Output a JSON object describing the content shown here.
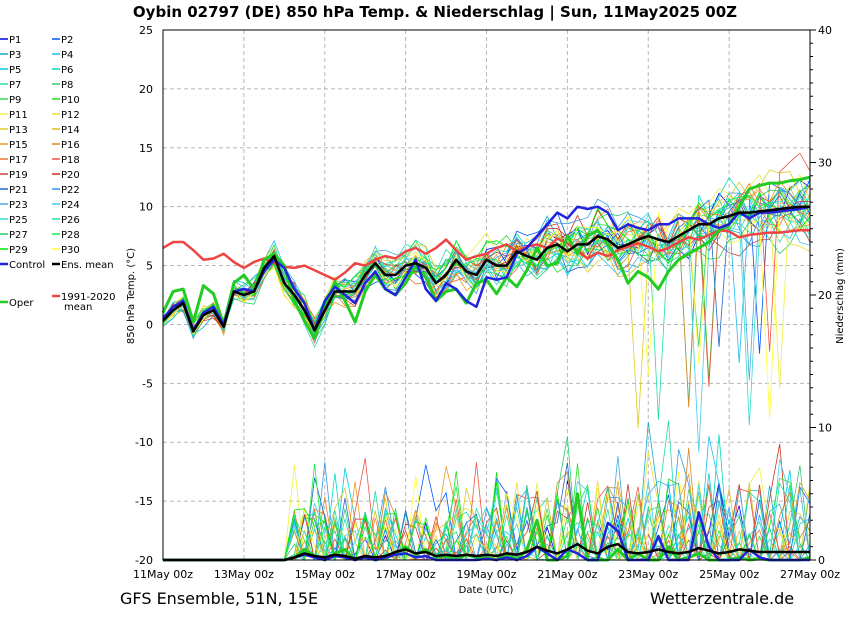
{
  "chart_data": {
    "type": "line",
    "title": "Oybin 02797 (DE)  850 hPa Temp. & Niederschlag | Sun, 11May2025 00Z",
    "xlabel": "Date (UTC)",
    "ylabel": "850 hPa Temp. (°C)",
    "y2label": "Niederschlag (mm)",
    "ylim": [
      -20,
      25
    ],
    "y2lim": [
      0,
      40
    ],
    "yticks": [
      "25",
      "20",
      "15",
      "10",
      "5",
      "0",
      "-5",
      "-10",
      "-15",
      "-20"
    ],
    "y2ticks": [
      "40",
      "30",
      "20",
      "10",
      "0"
    ],
    "x_hours": [
      0,
      6,
      12,
      18,
      24,
      30,
      36,
      42,
      48,
      54,
      60,
      66,
      72,
      78,
      84,
      90,
      96,
      102,
      108,
      114,
      120,
      126,
      132,
      138,
      144,
      150,
      156,
      162,
      168,
      174,
      180,
      186,
      192,
      198,
      204,
      210,
      216,
      222,
      228,
      234,
      240,
      246,
      252,
      258,
      264,
      270,
      276,
      282,
      288,
      294,
      300,
      306,
      312,
      318,
      324,
      330,
      336,
      342,
      348,
      354,
      360,
      366,
      372,
      378,
      384
    ],
    "xticks": [
      "11May 00z",
      "13May 00z",
      "15May 00z",
      "17May 00z",
      "19May 00z",
      "21May 00z",
      "23May 00z",
      "25May 00z",
      "27May 00z"
    ],
    "grid": true,
    "series": [
      {
        "name": "Oper",
        "color": "#22cc22",
        "width": 3,
        "temp": [
          1,
          2.8,
          3.0,
          0.2,
          3.3,
          2.6,
          0.0,
          3.5,
          4.2,
          3.0,
          5.5,
          6.0,
          5.0,
          2.0,
          0.3,
          -1.2,
          1.5,
          3.6,
          2.0,
          0.2,
          2.8,
          4.2,
          3.0,
          2.5,
          3.5,
          5.0,
          4.0,
          2.0,
          2.8,
          3.0,
          1.8,
          3.5,
          3.8,
          2.6,
          4.0,
          3.2,
          4.6,
          6.5,
          5.0,
          5.2,
          7.5,
          6.0,
          7.5,
          8.0,
          6.8,
          5.5,
          3.5,
          4.5,
          4.0,
          3.0,
          4.5,
          5.5,
          6.0,
          6.5,
          7.0,
          8.0,
          8.5,
          10.0,
          11.5,
          11.8,
          12.0,
          12.0,
          12.2,
          12.3,
          12.5
        ],
        "precip": [
          0,
          0,
          0,
          0,
          0,
          0,
          0,
          0,
          0,
          0,
          0,
          0,
          0,
          0.2,
          0.8,
          0.3,
          0,
          0.5,
          0.8,
          0,
          0.3,
          0,
          0.2,
          0.5,
          1.0,
          0.4,
          0.8,
          0.2,
          0.3,
          0,
          0.4,
          0.2,
          0.2,
          0,
          0.5,
          0,
          0.8,
          3.0,
          0,
          0,
          0.3,
          5.0,
          0,
          0,
          0,
          0.8,
          0,
          0.5,
          0,
          0,
          1.0,
          0,
          0.2,
          0.5,
          0,
          0,
          0,
          0.2,
          0,
          0.1,
          0,
          0,
          0,
          0,
          0.2
        ]
      },
      {
        "name": "Control",
        "color": "#2222dd",
        "width": 2.5,
        "temp": [
          0.5,
          1.5,
          2.0,
          -0.5,
          1.0,
          1.5,
          0,
          2.8,
          3.0,
          2.8,
          4.5,
          5.5,
          4.8,
          3.0,
          1.8,
          -0.5,
          2.0,
          3.2,
          2.5,
          1.8,
          3.5,
          4.5,
          3.0,
          2.5,
          4.0,
          5.5,
          3.0,
          2.0,
          3.5,
          3.0,
          2.0,
          1.5,
          4.0,
          3.8,
          4.0,
          6.0,
          6.5,
          7.5,
          8.5,
          9.5,
          9.0,
          10.0,
          9.8,
          10.0,
          9.5,
          8.0,
          8.5,
          8.2,
          8.0,
          8.5,
          8.5,
          9.0,
          9.0,
          9.0,
          8.5,
          8.2,
          8.5,
          9.5,
          9.0,
          9.5,
          9.5,
          9.6,
          9.7,
          9.8,
          10.0
        ],
        "precip": [
          0,
          0,
          0,
          0,
          0,
          0,
          0,
          0,
          0,
          0,
          0,
          0,
          0,
          0.2,
          0.4,
          0.2,
          0,
          0.3,
          0.2,
          0,
          0.2,
          0,
          0.2,
          0.4,
          0.5,
          0.2,
          0.3,
          0,
          0,
          0,
          0,
          0,
          0.1,
          0,
          0.2,
          0,
          0.3,
          1.0,
          0.5,
          0,
          0.8,
          0.5,
          0,
          0,
          2.8,
          2.2,
          0,
          0,
          0,
          1.8,
          0,
          0,
          0,
          3.6,
          1.0,
          0,
          0,
          0,
          0.8,
          0.2,
          0,
          0,
          0,
          0,
          0
        ]
      },
      {
        "name": "Ens. mean",
        "color": "#000000",
        "width": 2.5,
        "temp": [
          0.3,
          1.2,
          1.8,
          -0.6,
          0.8,
          1.2,
          -0.2,
          2.8,
          2.5,
          2.8,
          4.8,
          5.8,
          3.5,
          2.5,
          1.2,
          -0.5,
          1.2,
          2.8,
          2.8,
          2.8,
          4.2,
          5.2,
          4.2,
          4.2,
          5.0,
          5.2,
          4.8,
          3.5,
          4.2,
          5.5,
          4.5,
          4.2,
          5.5,
          5.0,
          5.0,
          6.2,
          5.8,
          5.5,
          6.5,
          6.8,
          6.2,
          6.8,
          6.8,
          7.5,
          7.2,
          6.5,
          6.8,
          7.2,
          7.5,
          7.2,
          7.0,
          7.5,
          8.0,
          8.5,
          8.5,
          9.0,
          9.2,
          9.5,
          9.5,
          9.6,
          9.7,
          9.8,
          9.9,
          10.0,
          10.0
        ],
        "precip": [
          0,
          0,
          0,
          0,
          0,
          0,
          0,
          0,
          0,
          0,
          0,
          0,
          0,
          0.2,
          0.5,
          0.3,
          0.2,
          0.4,
          0.3,
          0.1,
          0.3,
          0.2,
          0.3,
          0.6,
          0.8,
          0.5,
          0.6,
          0.3,
          0.4,
          0.3,
          0.4,
          0.3,
          0.4,
          0.3,
          0.5,
          0.4,
          0.6,
          1.0,
          0.7,
          0.5,
          0.8,
          1.2,
          0.7,
          0.5,
          1.0,
          1.2,
          0.6,
          0.5,
          0.6,
          0.8,
          0.6,
          0.5,
          0.6,
          0.9,
          0.7,
          0.5,
          0.6,
          0.8,
          0.7,
          0.6,
          0.6,
          0.6,
          0.6,
          0.6,
          0.6
        ]
      },
      {
        "name": "1991-2020 mean",
        "color": "#ee4444",
        "width": 2.5,
        "temp": [
          6.5,
          7.0,
          7.0,
          6.3,
          5.5,
          5.6,
          6.0,
          5.3,
          4.8,
          5.3,
          5.6,
          5.2,
          4.9,
          4.8,
          5.0,
          4.6,
          4.2,
          3.8,
          4.4,
          5.2,
          5.0,
          5.5,
          5.8,
          5.6,
          6.2,
          6.5,
          6.0,
          6.5,
          7.2,
          6.3,
          5.5,
          5.8,
          6.0,
          6.5,
          6.8,
          6.2,
          6.6,
          6.8,
          6.5,
          7.3,
          6.9,
          6.2,
          5.6,
          6.1,
          5.8,
          6.3,
          6.6,
          6.9,
          6.6,
          6.2,
          6.5,
          7.0,
          7.4,
          7.2,
          7.6,
          8.0,
          7.9,
          7.4,
          7.6,
          7.7,
          7.8,
          7.8,
          7.9,
          8.0,
          8.0
        ],
        "precip": []
      }
    ]
  },
  "header": {
    "title": "Oybin 02797 (DE)  850 hPa Temp. & Niederschlag | Sun, 11May2025 00Z"
  },
  "legend": {
    "items": [
      {
        "label": "P1",
        "color": "#0000ee"
      },
      {
        "label": "P2",
        "color": "#0055ff"
      },
      {
        "label": "P3",
        "color": "#11aacc"
      },
      {
        "label": "P4",
        "color": "#22bbee"
      },
      {
        "label": "P5",
        "color": "#00ccdd"
      },
      {
        "label": "P6",
        "color": "#00ddbb"
      },
      {
        "label": "P7",
        "color": "#22ddaa"
      },
      {
        "label": "P8",
        "color": "#33cc77"
      },
      {
        "label": "P9",
        "color": "#33dd55"
      },
      {
        "label": "P10",
        "color": "#22dd22"
      },
      {
        "label": "P11",
        "color": "#eeee44"
      },
      {
        "label": "P12",
        "color": "#eedd33"
      },
      {
        "label": "P13",
        "color": "#ddcc22"
      },
      {
        "label": "P14",
        "color": "#ddbb22"
      },
      {
        "label": "P15",
        "color": "#ee9922"
      },
      {
        "label": "P16",
        "color": "#dd8822"
      },
      {
        "label": "P17",
        "color": "#ee7733"
      },
      {
        "label": "P18",
        "color": "#ee5544"
      },
      {
        "label": "P19",
        "color": "#cc4433"
      },
      {
        "label": "P20",
        "color": "#cc3322"
      },
      {
        "label": "P21",
        "color": "#2266cc"
      },
      {
        "label": "P22",
        "color": "#3399ee"
      },
      {
        "label": "P23",
        "color": "#44aadd"
      },
      {
        "label": "P24",
        "color": "#44ccee"
      },
      {
        "label": "P25",
        "color": "#33ddcc"
      },
      {
        "label": "P26",
        "color": "#22ddaa"
      },
      {
        "label": "P27",
        "color": "#22cc66"
      },
      {
        "label": "P28",
        "color": "#11ee44"
      },
      {
        "label": "P29",
        "color": "#00ee00"
      },
      {
        "label": "P30",
        "color": "#ffff33"
      },
      {
        "label": "Control",
        "color": "#2222dd"
      },
      {
        "label": "Ens. mean",
        "color": "#000000"
      },
      {
        "label": "1991-2020",
        "label2": "mean",
        "color": "#ee4444"
      },
      {
        "label": "Oper",
        "color": "#22cc22"
      }
    ]
  },
  "footer": {
    "left": "GFS Ensemble, 51N, 15E",
    "right": "Wetterzentrale.de"
  }
}
